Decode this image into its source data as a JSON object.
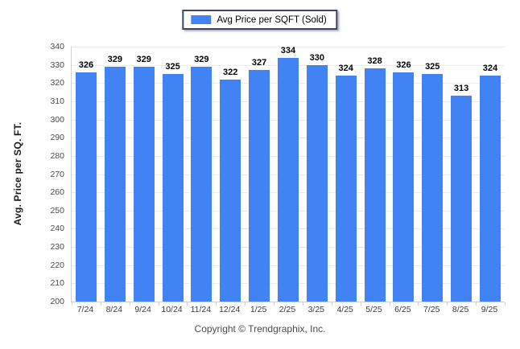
{
  "legend": {
    "label": "Avg Price per SQFT (Sold)"
  },
  "footer": {
    "copyright": "Copyright © Trendgraphix, Inc."
  },
  "colors": {
    "bar": "#4183f4",
    "legend_border": "#39466b",
    "gridline": "#ececec",
    "axis": "#cfcfcf"
  },
  "chart_data": {
    "type": "bar",
    "title": "",
    "xlabel": "",
    "ylabel": "Avg. Price per SQ. FT.",
    "categories": [
      "7/24",
      "8/24",
      "9/24",
      "10/24",
      "11/24",
      "12/24",
      "1/25",
      "2/25",
      "3/25",
      "4/25",
      "5/25",
      "6/25",
      "7/25",
      "8/25",
      "9/25"
    ],
    "values": [
      326,
      329,
      329,
      325,
      329,
      322,
      327,
      334,
      330,
      324,
      328,
      326,
      325,
      313,
      324
    ],
    "ylim": [
      200,
      340
    ],
    "ytick_step": 10,
    "grid": true,
    "legend_entries": [
      "Avg Price per SQFT (Sold)"
    ],
    "legend_position": "top-center",
    "bar_labels": true
  }
}
